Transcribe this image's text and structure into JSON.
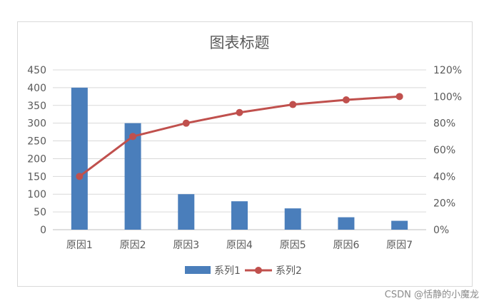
{
  "chart_data": {
    "type": "bar",
    "title": "图表标题",
    "categories": [
      "原因1",
      "原因2",
      "原因3",
      "原因4",
      "原因5",
      "原因6",
      "原因7"
    ],
    "series": [
      {
        "name": "系列1",
        "type": "bar",
        "axis": "left",
        "color": "#4a7ebb",
        "values": [
          400,
          300,
          100,
          80,
          60,
          35,
          25
        ]
      },
      {
        "name": "系列2",
        "type": "line",
        "axis": "right",
        "color": "#c0504d",
        "values": [
          0.4,
          0.7,
          0.8,
          0.88,
          0.94,
          0.975,
          1.0
        ]
      }
    ],
    "y_left": {
      "min": 0,
      "max": 450,
      "ticks": [
        0,
        50,
        100,
        150,
        200,
        250,
        300,
        350,
        400,
        450
      ],
      "tick_labels": [
        "0",
        "50",
        "100",
        "150",
        "200",
        "250",
        "300",
        "350",
        "400",
        "450"
      ]
    },
    "y_right": {
      "min": 0,
      "max": 1.2,
      "ticks": [
        0,
        0.2,
        0.4,
        0.6,
        0.8,
        1.0,
        1.2
      ],
      "tick_labels": [
        "0%",
        "20%",
        "40%",
        "60%",
        "80%",
        "100%",
        "120%"
      ]
    },
    "grid": true,
    "legend_position": "bottom"
  },
  "watermark": "CSDN @恬静的小魔龙"
}
